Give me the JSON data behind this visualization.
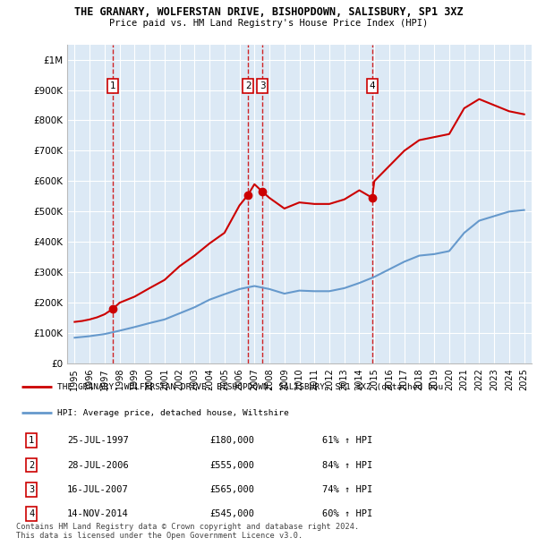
{
  "title1": "THE GRANARY, WOLFERSTAN DRIVE, BISHOPDOWN, SALISBURY, SP1 3XZ",
  "title2": "Price paid vs. HM Land Registry's House Price Index (HPI)",
  "bg_color": "#dce9f5",
  "red_color": "#cc0000",
  "blue_color": "#6699cc",
  "sale_dates": [
    1997.56,
    2006.57,
    2007.54,
    2014.87
  ],
  "sale_prices": [
    180000,
    555000,
    565000,
    545000
  ],
  "sale_labels": [
    "1",
    "2",
    "3",
    "4"
  ],
  "hpi_years": [
    1995,
    1996,
    1997,
    1998,
    1999,
    2000,
    2001,
    2002,
    2003,
    2004,
    2005,
    2006,
    2007,
    2008,
    2009,
    2010,
    2011,
    2012,
    2013,
    2014,
    2015,
    2016,
    2017,
    2018,
    2019,
    2020,
    2021,
    2022,
    2023,
    2024,
    2025
  ],
  "hpi_values": [
    85000,
    90000,
    97000,
    108000,
    120000,
    133000,
    145000,
    165000,
    185000,
    210000,
    228000,
    245000,
    255000,
    245000,
    230000,
    240000,
    238000,
    238000,
    248000,
    265000,
    285000,
    310000,
    335000,
    355000,
    360000,
    370000,
    430000,
    470000,
    485000,
    500000,
    505000
  ],
  "property_years": [
    1995,
    1995.5,
    1996,
    1996.5,
    1997,
    1997.56,
    1998,
    1999,
    2000,
    2001,
    2002,
    2003,
    2004,
    2005,
    2006,
    2006.57,
    2007,
    2007.54,
    2008,
    2009,
    2010,
    2011,
    2012,
    2013,
    2014,
    2014.87,
    2015,
    2016,
    2017,
    2018,
    2019,
    2020,
    2021,
    2022,
    2023,
    2024,
    2025
  ],
  "property_values": [
    137000,
    140000,
    145000,
    152000,
    162000,
    180000,
    200000,
    220000,
    248000,
    275000,
    320000,
    355000,
    395000,
    430000,
    520000,
    555000,
    590000,
    565000,
    545000,
    510000,
    530000,
    525000,
    525000,
    540000,
    570000,
    545000,
    600000,
    650000,
    700000,
    735000,
    745000,
    755000,
    840000,
    870000,
    850000,
    830000,
    820000
  ],
  "xmin": 1994.5,
  "xmax": 2025.5,
  "ymin": 0,
  "ymax": 1050000,
  "yticks": [
    0,
    100000,
    200000,
    300000,
    400000,
    500000,
    600000,
    700000,
    800000,
    900000,
    1000000
  ],
  "ytick_labels": [
    "£0",
    "£100K",
    "£200K",
    "£300K",
    "£400K",
    "£500K",
    "£600K",
    "£700K",
    "£800K",
    "£900K",
    "£1M"
  ],
  "xtick_years": [
    1995,
    1996,
    1997,
    1998,
    1999,
    2000,
    2001,
    2002,
    2003,
    2004,
    2005,
    2006,
    2007,
    2008,
    2009,
    2010,
    2011,
    2012,
    2013,
    2014,
    2015,
    2016,
    2017,
    2018,
    2019,
    2020,
    2021,
    2022,
    2023,
    2024,
    2025
  ],
  "legend_line1": "THE GRANARY, WOLFERSTAN DRIVE, BISHOPDOWN, SALISBURY, SP1 3XZ (detached hou",
  "legend_line2": "HPI: Average price, detached house, Wiltshire",
  "table_rows": [
    {
      "num": "1",
      "date": "25-JUL-1997",
      "price": "£180,000",
      "hpi": "61% ↑ HPI"
    },
    {
      "num": "2",
      "date": "28-JUL-2006",
      "price": "£555,000",
      "hpi": "84% ↑ HPI"
    },
    {
      "num": "3",
      "date": "16-JUL-2007",
      "price": "£565,000",
      "hpi": "74% ↑ HPI"
    },
    {
      "num": "4",
      "date": "14-NOV-2014",
      "price": "£545,000",
      "hpi": "60% ↑ HPI"
    }
  ],
  "footer": "Contains HM Land Registry data © Crown copyright and database right 2024.\nThis data is licensed under the Open Government Licence v3.0."
}
